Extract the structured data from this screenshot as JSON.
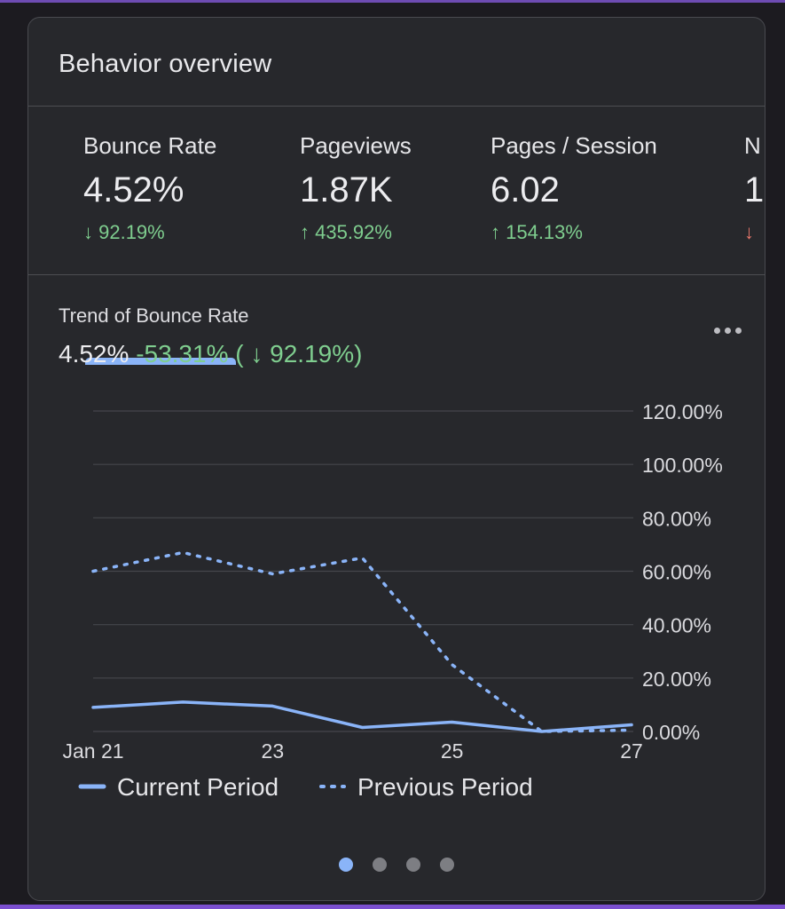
{
  "card": {
    "title": "Behavior overview"
  },
  "metrics": [
    {
      "label": "Bounce Rate",
      "value": "4.52%",
      "delta": "↓ 92.19%",
      "positive": true
    },
    {
      "label": "Pageviews",
      "value": "1.87K",
      "delta": "↑ 435.92%",
      "positive": true
    },
    {
      "label": "Pages / Session",
      "value": "6.02",
      "delta": "↑ 154.13%",
      "positive": true
    },
    {
      "label": "N",
      "value": "1.",
      "delta": "↓",
      "positive": false
    }
  ],
  "trend": {
    "title": "Trend of Bounce Rate",
    "current": "4.52%",
    "change": "-53.31% ( ↓ 92.19%)",
    "more_icon": "more-horiz-icon"
  },
  "chart_data": {
    "type": "line",
    "x": [
      "Jan 21",
      "Jan 22",
      "Jan 23",
      "Jan 24",
      "Jan 25",
      "Jan 26",
      "Jan 27"
    ],
    "x_tick_labels": [
      "Jan 21",
      "23",
      "25",
      "27"
    ],
    "x_tick_index": [
      0,
      2,
      4,
      6
    ],
    "y_tick_labels": [
      "0.00%",
      "20.00%",
      "40.00%",
      "60.00%",
      "80.00%",
      "100.00%",
      "120.00%"
    ],
    "y_ticks": [
      0,
      20,
      40,
      60,
      80,
      100,
      120
    ],
    "ylim": [
      0,
      120
    ],
    "y_axis_side": "right",
    "grid": true,
    "legend_position": "bottom-left",
    "series": [
      {
        "name": "Current Period",
        "style": "solid",
        "color": "#8ab4f8",
        "values": [
          9,
          11,
          9.5,
          1.5,
          3.5,
          0,
          2.5
        ]
      },
      {
        "name": "Previous Period",
        "style": "dotted",
        "color": "#8ab4f8",
        "values": [
          60,
          67,
          59,
          65,
          25,
          0,
          0.5
        ]
      }
    ]
  },
  "pager": {
    "pages": 4,
    "active": 0
  },
  "colors": {
    "accent": "#8ab4f8",
    "positive": "#7fce8f",
    "negative": "#e8776c",
    "frame": "#7b4fd0"
  }
}
